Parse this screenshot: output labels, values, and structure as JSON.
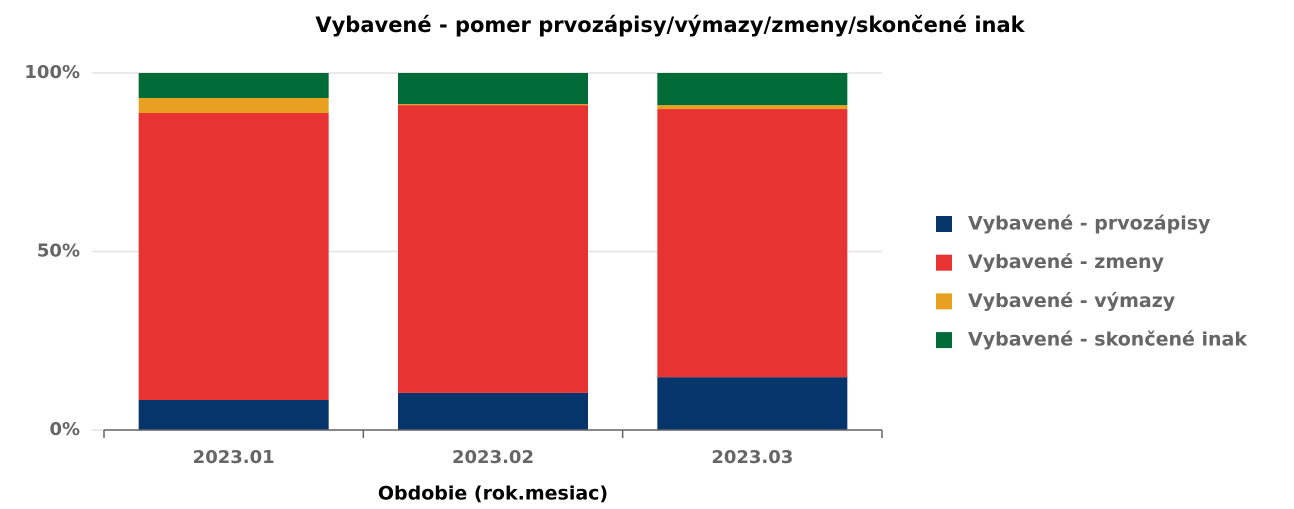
{
  "chart_data": {
    "type": "stacked_bar",
    "title": "Vybavené - pomer prvozápisy/výmazy/zmeny/skončené inak",
    "x_label": "Obdobie (rok.mesiac)",
    "categories": [
      "2023.01",
      "2023.02",
      "2023.03"
    ],
    "series": [
      {
        "name": "Vybavené - prvozápisy",
        "color": "#05356b",
        "values": [
          8.4,
          10.4,
          14.8
        ]
      },
      {
        "name": "Vybavené - zmeny",
        "color": "#e83333",
        "values": [
          80.4,
          80.6,
          75.1
        ]
      },
      {
        "name": "Vybavené - výmazy",
        "color": "#e8a020",
        "values": [
          4.2,
          0.3,
          1.1
        ]
      },
      {
        "name": "Vybavené - skončené inak",
        "color": "#006b36",
        "values": [
          7.0,
          8.7,
          9.0
        ]
      }
    ],
    "ylim": [
      0,
      100
    ],
    "yticks": [
      {
        "value": 0,
        "label": "0%"
      },
      {
        "value": 50,
        "label": "50%"
      },
      {
        "value": 100,
        "label": "100%"
      }
    ],
    "grid": true,
    "legend": "right"
  }
}
